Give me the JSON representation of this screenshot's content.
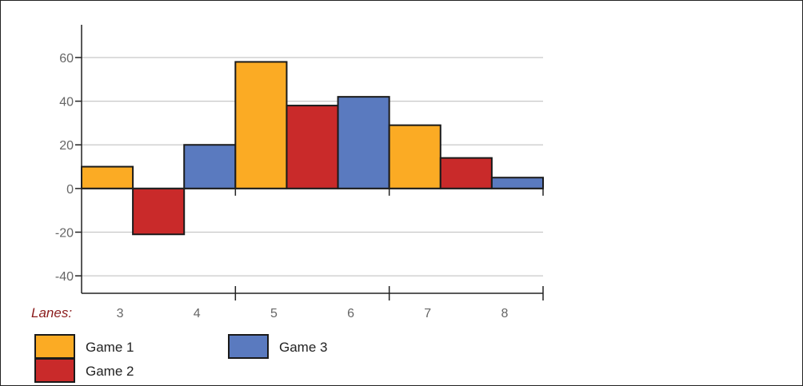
{
  "chart_data": {
    "type": "bar",
    "x_label_prefix": "Lanes:",
    "x": [
      3,
      4,
      5,
      6,
      7,
      8
    ],
    "series": [
      {
        "name": "Game 1",
        "color": "#fbab24",
        "points": [
          [
            3,
            10
          ],
          [
            5,
            58
          ],
          [
            7,
            29
          ]
        ]
      },
      {
        "name": "Game 2",
        "color": "#c92a2a",
        "points": [
          [
            4,
            -21
          ],
          [
            6,
            38
          ],
          [
            8,
            14
          ]
        ]
      },
      {
        "name": "Game 3",
        "color": "#5a7abf",
        "points": [
          [
            4,
            20
          ],
          [
            6,
            42
          ],
          [
            8,
            5
          ]
        ]
      }
    ],
    "bar_order": [
      {
        "series": 0,
        "point": 0
      },
      {
        "series": 1,
        "point": 0
      },
      {
        "series": 2,
        "point": 0
      },
      {
        "series": 0,
        "point": 1
      },
      {
        "series": 1,
        "point": 1
      },
      {
        "series": 2,
        "point": 1
      },
      {
        "series": 0,
        "point": 2
      },
      {
        "series": 1,
        "point": 2
      },
      {
        "series": 2,
        "point": 2
      }
    ],
    "yticks": [
      -40,
      -20,
      0,
      20,
      40,
      60
    ],
    "ylim": [
      -48,
      75
    ],
    "xlim": [
      2.5,
      8.5
    ],
    "grid": true,
    "legend": {
      "placement": "bottom-left",
      "rows": [
        [
          0,
          2
        ],
        [
          1
        ]
      ]
    }
  }
}
